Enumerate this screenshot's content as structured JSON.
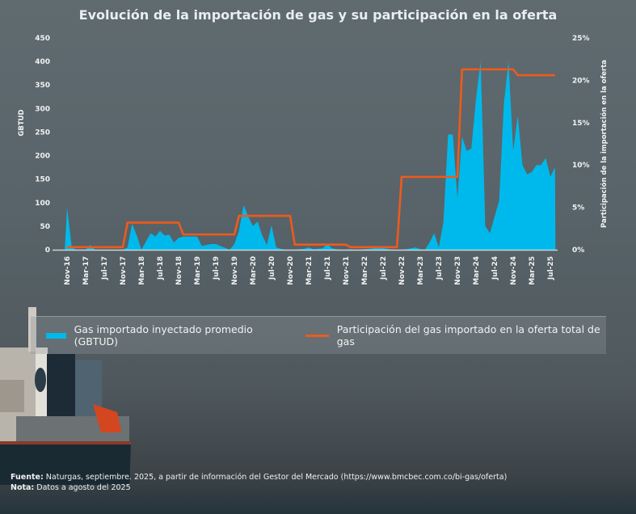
{
  "title": "Evolución de la importación de gas y su participación en la oferta",
  "chart_data": {
    "type": "area+line",
    "title": "Evolución de la importación de gas y su participación en la oferta",
    "ylabel": "GBTUD",
    "y2label": "Participación de la importación en la oferta",
    "ylim": [
      0,
      450
    ],
    "y2lim": [
      0,
      25
    ],
    "yticks": [
      "0",
      "50",
      "100",
      "150",
      "200",
      "250",
      "300",
      "350",
      "400",
      "450"
    ],
    "y2ticks": [
      "0%",
      "5%",
      "10%",
      "15%",
      "20%",
      "25%"
    ],
    "xtick_labels": [
      "Nov-16",
      "Mar-17",
      "Jul-17",
      "Nov-17",
      "Mar-18",
      "Jul-18",
      "Nov-18",
      "Mar-19",
      "Jul-19",
      "Nov-19",
      "Mar-20",
      "Jul-20",
      "Nov-20",
      "Mar-21",
      "Jul-21",
      "Nov-21",
      "Mar-22",
      "Jul-22",
      "Nov-22",
      "Mar-23",
      "Jul-23",
      "Nov-23",
      "Mar-24",
      "Jul-24",
      "Nov-24",
      "Mar-25",
      "Jul-25"
    ],
    "x": [
      "Nov-16",
      "Dec-16",
      "Jan-17",
      "Feb-17",
      "Mar-17",
      "Apr-17",
      "May-17",
      "Jun-17",
      "Jul-17",
      "Aug-17",
      "Sep-17",
      "Oct-17",
      "Nov-17",
      "Dec-17",
      "Jan-18",
      "Feb-18",
      "Mar-18",
      "Apr-18",
      "May-18",
      "Jun-18",
      "Jul-18",
      "Aug-18",
      "Sep-18",
      "Oct-18",
      "Nov-18",
      "Dec-18",
      "Jan-19",
      "Feb-19",
      "Mar-19",
      "Apr-19",
      "May-19",
      "Jun-19",
      "Jul-19",
      "Aug-19",
      "Sep-19",
      "Oct-19",
      "Nov-19",
      "Dec-19",
      "Jan-20",
      "Feb-20",
      "Mar-20",
      "Apr-20",
      "May-20",
      "Jun-20",
      "Jul-20",
      "Aug-20",
      "Sep-20",
      "Oct-20",
      "Nov-20",
      "Dec-20",
      "Jan-21",
      "Feb-21",
      "Mar-21",
      "Apr-21",
      "May-21",
      "Jun-21",
      "Jul-21",
      "Aug-21",
      "Sep-21",
      "Oct-21",
      "Nov-21",
      "Dec-21",
      "Jan-22",
      "Feb-22",
      "Mar-22",
      "Apr-22",
      "May-22",
      "Jun-22",
      "Jul-22",
      "Aug-22",
      "Sep-22",
      "Oct-22",
      "Nov-22",
      "Dec-22",
      "Jan-23",
      "Feb-23",
      "Mar-23",
      "Apr-23",
      "May-23",
      "Jun-23",
      "Jul-23",
      "Aug-23",
      "Sep-23",
      "Oct-23",
      "Nov-23",
      "Dec-23",
      "Jan-24",
      "Feb-24",
      "Mar-24",
      "Apr-24",
      "May-24",
      "Jun-24",
      "Jul-24",
      "Aug-24",
      "Sep-24",
      "Oct-24",
      "Nov-24",
      "Dec-24",
      "Jan-25",
      "Feb-25",
      "Mar-25",
      "Apr-25",
      "May-25",
      "Jun-25",
      "Jul-25",
      "Aug-25"
    ],
    "series": [
      {
        "name": "Gas importado inyectado promedio (GBTUD)",
        "type": "area",
        "axis": "left",
        "color": "#00b9ec",
        "values": [
          90,
          5,
          0,
          0,
          0,
          10,
          0,
          0,
          0,
          0,
          0,
          0,
          0,
          5,
          55,
          30,
          0,
          18,
          35,
          28,
          40,
          30,
          32,
          15,
          25,
          28,
          28,
          28,
          28,
          8,
          10,
          12,
          12,
          8,
          4,
          0,
          12,
          40,
          95,
          70,
          50,
          60,
          30,
          10,
          52,
          5,
          2,
          0,
          0,
          0,
          1,
          2,
          5,
          1,
          2,
          3,
          12,
          3,
          1,
          0,
          0,
          1,
          0,
          0,
          1,
          2,
          3,
          5,
          3,
          2,
          0,
          0,
          0,
          1,
          3,
          5,
          1,
          0,
          15,
          35,
          5,
          60,
          245,
          245,
          110,
          240,
          210,
          215,
          320,
          400,
          50,
          35,
          70,
          105,
          310,
          400,
          210,
          285,
          180,
          160,
          165,
          180,
          180,
          195,
          155,
          175
        ]
      },
      {
        "name": "Participación del gas importado en la oferta total de gas",
        "type": "line",
        "axis": "right",
        "color": "#ef5a1c",
        "values": [
          0.3,
          0.3,
          0.3,
          0.3,
          0.3,
          0.3,
          0.3,
          0.3,
          0.3,
          0.3,
          0.3,
          0.3,
          0.3,
          3.2,
          3.2,
          3.2,
          3.2,
          3.2,
          3.2,
          3.2,
          3.2,
          3.2,
          3.2,
          3.2,
          3.2,
          1.8,
          1.8,
          1.8,
          1.8,
          1.8,
          1.8,
          1.8,
          1.8,
          1.8,
          1.8,
          1.8,
          1.8,
          4.0,
          4.0,
          4.0,
          4.0,
          4.0,
          4.0,
          4.0,
          4.0,
          4.0,
          4.0,
          4.0,
          4.0,
          0.6,
          0.6,
          0.6,
          0.6,
          0.6,
          0.6,
          0.6,
          0.6,
          0.6,
          0.6,
          0.6,
          0.6,
          0.3,
          0.3,
          0.3,
          0.3,
          0.3,
          0.3,
          0.3,
          0.3,
          0.3,
          0.3,
          0.3,
          8.6,
          8.6,
          8.6,
          8.6,
          8.6,
          8.6,
          8.6,
          8.6,
          8.6,
          8.6,
          8.6,
          8.6,
          8.6,
          21.3,
          21.3,
          21.3,
          21.3,
          21.3,
          21.3,
          21.3,
          21.3,
          21.3,
          21.3,
          21.3,
          21.3,
          20.6,
          20.6,
          20.6,
          20.6,
          20.6,
          20.6,
          20.6,
          20.6,
          20.6
        ]
      }
    ],
    "legend": "bottom",
    "grid": false
  },
  "legend": {
    "area_label": "Gas importado inyectado promedio (GBTUD)",
    "line_label": "Participación del gas importado en la oferta total de gas"
  },
  "footer": {
    "source_label": "Fuente:",
    "source_text": " Naturgas, septiembre. 2025, a partir de información del Gestor del Mercado (https://www.bmcbec.com.co/bi-gas/oferta)",
    "note_label": "Nota:",
    "note_text": " Datos a agosto del 2025"
  }
}
